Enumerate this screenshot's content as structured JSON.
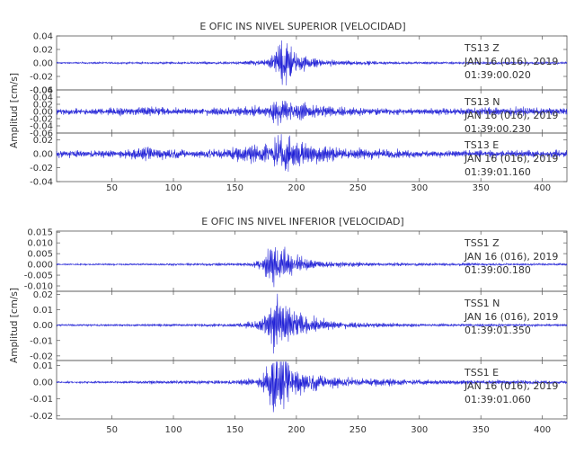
{
  "colors": {
    "trace": "#1f1fd6",
    "axes": "#555555",
    "text": "#333333"
  },
  "chart_data": [
    {
      "type": "line",
      "title": "E OFIC INS NIVEL SUPERIOR [VELOCIDAD]",
      "ylabel": "Amplitud [cm/s]",
      "xlim": [
        5,
        420
      ],
      "xticks": [
        "50",
        "100",
        "150",
        "200",
        "250",
        "300",
        "350",
        "400"
      ],
      "traces": [
        {
          "station": "TS13",
          "component": "Z",
          "date": "JAN 16 (016), 2019",
          "time": "01:39:00.020",
          "ylim": [
            -0.04,
            0.04
          ],
          "yticks": [
            "-0.04",
            "-0.02",
            "0.00",
            "0.02",
            "0.04"
          ],
          "noise": 0.0012,
          "peak": 0.035,
          "envelope": [
            [
              5,
              0.001
            ],
            [
              150,
              0.002
            ],
            [
              175,
              0.005
            ],
            [
              182,
              0.018
            ],
            [
              188,
              0.035
            ],
            [
              194,
              0.03
            ],
            [
              200,
              0.016
            ],
            [
              210,
              0.008
            ],
            [
              230,
              0.004
            ],
            [
              280,
              0.002
            ],
            [
              420,
              0.0015
            ]
          ]
        },
        {
          "station": "TS13",
          "component": "N",
          "date": "JAN 16 (016), 2019",
          "time": "01:39:00.230",
          "ylim": [
            -0.06,
            0.06
          ],
          "yticks": [
            "-0.06",
            "-0.04",
            "-0.02",
            "0.00",
            "0.02",
            "0.04",
            "0.06"
          ],
          "noise": 0.008,
          "peak": 0.04,
          "envelope": [
            [
              5,
              0.006
            ],
            [
              40,
              0.009
            ],
            [
              80,
              0.014
            ],
            [
              100,
              0.008
            ],
            [
              150,
              0.012
            ],
            [
              175,
              0.016
            ],
            [
              185,
              0.035
            ],
            [
              190,
              0.04
            ],
            [
              198,
              0.028
            ],
            [
              210,
              0.022
            ],
            [
              240,
              0.012
            ],
            [
              300,
              0.008
            ],
            [
              360,
              0.012
            ],
            [
              420,
              0.009
            ]
          ]
        },
        {
          "station": "TS13",
          "component": "E",
          "date": "JAN 16 (016), 2019",
          "time": "01:39:01.160",
          "ylim": [
            -0.04,
            0.03
          ],
          "yticks": [
            "-0.04",
            "-0.02",
            "0.00",
            "0.02"
          ],
          "noise": 0.005,
          "peak": 0.03,
          "envelope": [
            [
              5,
              0.004
            ],
            [
              60,
              0.006
            ],
            [
              80,
              0.009
            ],
            [
              120,
              0.006
            ],
            [
              160,
              0.012
            ],
            [
              175,
              0.014
            ],
            [
              185,
              0.026
            ],
            [
              192,
              0.03
            ],
            [
              200,
              0.02
            ],
            [
              215,
              0.014
            ],
            [
              240,
              0.008
            ],
            [
              300,
              0.005
            ],
            [
              420,
              0.004
            ]
          ]
        }
      ]
    },
    {
      "type": "line",
      "title": "E OFIC INS NIVEL INFERIOR [VELOCIDAD]",
      "ylabel": "Amplitud [cm/s]",
      "xlim": [
        5,
        420
      ],
      "xticks": [
        "50",
        "100",
        "150",
        "200",
        "250",
        "300",
        "350",
        "400"
      ],
      "traces": [
        {
          "station": "TSS1",
          "component": "Z",
          "date": "JAN 16 (016), 2019",
          "time": "01:39:00.180",
          "ylim": [
            -0.0125,
            0.0155
          ],
          "yticks": [
            "-0.010",
            "-0.005",
            "0.000",
            "0.005",
            "0.010",
            "0.015"
          ],
          "noise": 0.0003,
          "peak": 0.011,
          "envelope": [
            [
              5,
              0.0003
            ],
            [
              120,
              0.0005
            ],
            [
              160,
              0.0008
            ],
            [
              172,
              0.0025
            ],
            [
              178,
              0.009
            ],
            [
              183,
              0.011
            ],
            [
              190,
              0.007
            ],
            [
              200,
              0.004
            ],
            [
              220,
              0.0015
            ],
            [
              260,
              0.0008
            ],
            [
              420,
              0.0005
            ]
          ]
        },
        {
          "station": "TSS1",
          "component": "N",
          "date": "JAN 16 (016), 2019",
          "time": "01:39:01.350",
          "ylim": [
            -0.023,
            0.022
          ],
          "yticks": [
            "-0.02",
            "-0.01",
            "0.00",
            "0.01",
            "0.02"
          ],
          "noise": 0.0006,
          "peak": 0.022,
          "envelope": [
            [
              5,
              0.0006
            ],
            [
              150,
              0.001
            ],
            [
              170,
              0.003
            ],
            [
              177,
              0.012
            ],
            [
              182,
              0.022
            ],
            [
              188,
              0.016
            ],
            [
              196,
              0.01
            ],
            [
              210,
              0.005
            ],
            [
              240,
              0.002
            ],
            [
              300,
              0.001
            ],
            [
              420,
              0.0008
            ]
          ]
        },
        {
          "station": "TSS1",
          "component": "E",
          "date": "JAN 16 (016), 2019",
          "time": "01:39:01.060",
          "ylim": [
            -0.022,
            0.013
          ],
          "yticks": [
            "-0.02",
            "-0.01",
            "0.00",
            "0.01"
          ],
          "noise": 0.0005,
          "peak": 0.02,
          "envelope": [
            [
              5,
              0.0005
            ],
            [
              150,
              0.0012
            ],
            [
              170,
              0.003
            ],
            [
              177,
              0.01
            ],
            [
              182,
              0.02
            ],
            [
              188,
              0.016
            ],
            [
              196,
              0.01
            ],
            [
              210,
              0.006
            ],
            [
              240,
              0.003
            ],
            [
              300,
              0.0015
            ],
            [
              420,
              0.001
            ]
          ]
        }
      ]
    }
  ]
}
